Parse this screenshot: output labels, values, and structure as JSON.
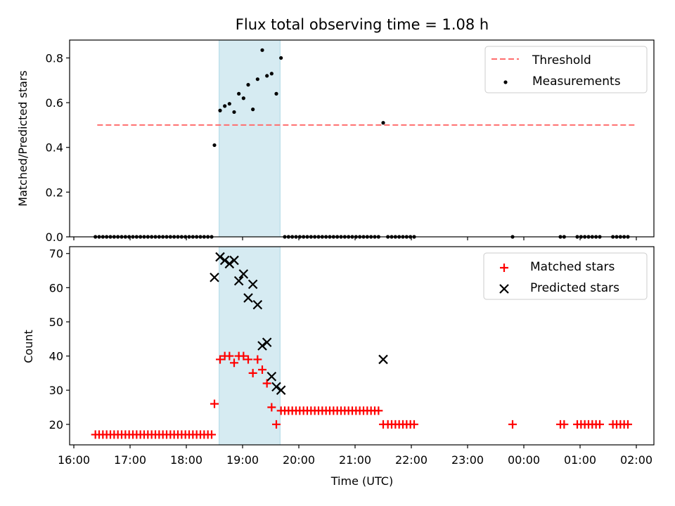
{
  "title": "Flux total observing time = 1.08 h",
  "colors": {
    "threshold": "#ff6e6e",
    "measurement": "#000000",
    "matched": "#ff0000",
    "predicted": "#000000",
    "span": "#add8e6"
  },
  "chart_data": [
    {
      "type": "scatter",
      "ylabel": "Matched/Predicted stars",
      "xlim": [
        "16:00",
        "02:10"
      ],
      "ylim": [
        0,
        0.88
      ],
      "yticks": [
        0.0,
        0.2,
        0.4,
        0.6,
        0.8
      ],
      "xticks": [
        "16:00",
        "17:00",
        "18:00",
        "19:00",
        "20:00",
        "21:00",
        "22:00",
        "23:00",
        "00:00",
        "01:00",
        "02:00"
      ],
      "highlight_span": [
        "18:35",
        "19:40"
      ],
      "legend": {
        "position": "top-right",
        "entries": [
          "Threshold",
          "Measurements"
        ]
      },
      "threshold": {
        "name": "Threshold",
        "y": 0.5,
        "x": [
          "16:25",
          "02:00"
        ]
      },
      "series": [
        {
          "name": "Measurements",
          "points": [
            [
              "16:23",
              0
            ],
            [
              "16:27",
              0
            ],
            [
              "16:31",
              0
            ],
            [
              "16:35",
              0
            ],
            [
              "16:39",
              0
            ],
            [
              "16:43",
              0
            ],
            [
              "16:47",
              0
            ],
            [
              "16:51",
              0
            ],
            [
              "16:55",
              0
            ],
            [
              "16:59",
              0
            ],
            [
              "17:03",
              0
            ],
            [
              "17:07",
              0
            ],
            [
              "17:11",
              0
            ],
            [
              "17:15",
              0
            ],
            [
              "17:19",
              0
            ],
            [
              "17:23",
              0
            ],
            [
              "17:27",
              0
            ],
            [
              "17:31",
              0
            ],
            [
              "17:35",
              0
            ],
            [
              "17:39",
              0
            ],
            [
              "17:43",
              0
            ],
            [
              "17:47",
              0
            ],
            [
              "17:51",
              0
            ],
            [
              "17:55",
              0
            ],
            [
              "17:59",
              0
            ],
            [
              "18:03",
              0
            ],
            [
              "18:07",
              0
            ],
            [
              "18:11",
              0
            ],
            [
              "18:15",
              0
            ],
            [
              "18:19",
              0
            ],
            [
              "18:23",
              0
            ],
            [
              "18:27",
              0
            ],
            [
              "18:30",
              0.41
            ],
            [
              "18:36",
              0.565
            ],
            [
              "18:41",
              0.585
            ],
            [
              "18:46",
              0.595
            ],
            [
              "18:51",
              0.558
            ],
            [
              "18:56",
              0.64
            ],
            [
              "19:01",
              0.62
            ],
            [
              "19:06",
              0.68
            ],
            [
              "19:11",
              0.57
            ],
            [
              "19:16",
              0.705
            ],
            [
              "19:21",
              0.835
            ],
            [
              "19:26",
              0.72
            ],
            [
              "19:31",
              0.73
            ],
            [
              "19:36",
              0.64
            ],
            [
              "19:41",
              0.8
            ],
            [
              "19:45",
              0
            ],
            [
              "19:49",
              0
            ],
            [
              "19:53",
              0
            ],
            [
              "19:57",
              0
            ],
            [
              "20:01",
              0
            ],
            [
              "20:05",
              0
            ],
            [
              "20:09",
              0
            ],
            [
              "20:13",
              0
            ],
            [
              "20:17",
              0
            ],
            [
              "20:21",
              0
            ],
            [
              "20:25",
              0
            ],
            [
              "20:29",
              0
            ],
            [
              "20:33",
              0
            ],
            [
              "20:37",
              0
            ],
            [
              "20:41",
              0
            ],
            [
              "20:45",
              0
            ],
            [
              "20:49",
              0
            ],
            [
              "20:53",
              0
            ],
            [
              "20:57",
              0
            ],
            [
              "21:01",
              0
            ],
            [
              "21:05",
              0
            ],
            [
              "21:09",
              0
            ],
            [
              "21:13",
              0
            ],
            [
              "21:17",
              0
            ],
            [
              "21:21",
              0
            ],
            [
              "21:25",
              0
            ],
            [
              "21:30",
              0.51
            ],
            [
              "21:35",
              0
            ],
            [
              "21:39",
              0
            ],
            [
              "21:43",
              0
            ],
            [
              "21:47",
              0
            ],
            [
              "21:51",
              0
            ],
            [
              "21:55",
              0
            ],
            [
              "21:59",
              0
            ],
            [
              "22:03",
              0
            ],
            [
              "23:48",
              0
            ],
            [
              "00:39",
              0
            ],
            [
              "00:43",
              0
            ],
            [
              "00:57",
              0
            ],
            [
              "01:01",
              0
            ],
            [
              "01:05",
              0
            ],
            [
              "01:09",
              0
            ],
            [
              "01:13",
              0
            ],
            [
              "01:17",
              0
            ],
            [
              "01:21",
              0
            ],
            [
              "01:35",
              0
            ],
            [
              "01:39",
              0
            ],
            [
              "01:43",
              0
            ],
            [
              "01:47",
              0
            ],
            [
              "01:51",
              0
            ]
          ]
        }
      ]
    },
    {
      "type": "scatter",
      "xlabel": "Time (UTC)",
      "ylabel": "Count",
      "xlim": [
        "16:00",
        "02:10"
      ],
      "ylim": [
        14,
        72
      ],
      "yticks": [
        20,
        30,
        40,
        50,
        60,
        70
      ],
      "xticks": [
        "16:00",
        "17:00",
        "18:00",
        "19:00",
        "20:00",
        "21:00",
        "22:00",
        "23:00",
        "00:00",
        "01:00",
        "02:00"
      ],
      "highlight_span": [
        "18:35",
        "19:40"
      ],
      "legend": {
        "position": "top-right",
        "entries": [
          "Matched stars",
          "Predicted stars"
        ]
      },
      "series": [
        {
          "name": "Matched stars",
          "marker": "plus",
          "points": [
            [
              "16:23",
              17
            ],
            [
              "16:27",
              17
            ],
            [
              "16:31",
              17
            ],
            [
              "16:35",
              17
            ],
            [
              "16:39",
              17
            ],
            [
              "16:43",
              17
            ],
            [
              "16:47",
              17
            ],
            [
              "16:51",
              17
            ],
            [
              "16:55",
              17
            ],
            [
              "16:59",
              17
            ],
            [
              "17:03",
              17
            ],
            [
              "17:07",
              17
            ],
            [
              "17:11",
              17
            ],
            [
              "17:15",
              17
            ],
            [
              "17:19",
              17
            ],
            [
              "17:23",
              17
            ],
            [
              "17:27",
              17
            ],
            [
              "17:31",
              17
            ],
            [
              "17:35",
              17
            ],
            [
              "17:39",
              17
            ],
            [
              "17:43",
              17
            ],
            [
              "17:47",
              17
            ],
            [
              "17:51",
              17
            ],
            [
              "17:55",
              17
            ],
            [
              "17:59",
              17
            ],
            [
              "18:03",
              17
            ],
            [
              "18:07",
              17
            ],
            [
              "18:11",
              17
            ],
            [
              "18:15",
              17
            ],
            [
              "18:19",
              17
            ],
            [
              "18:23",
              17
            ],
            [
              "18:27",
              17
            ],
            [
              "18:30",
              26
            ],
            [
              "18:36",
              39
            ],
            [
              "18:41",
              40
            ],
            [
              "18:46",
              40
            ],
            [
              "18:51",
              38
            ],
            [
              "18:56",
              40
            ],
            [
              "19:01",
              40
            ],
            [
              "19:06",
              39
            ],
            [
              "19:11",
              35
            ],
            [
              "19:16",
              39
            ],
            [
              "19:21",
              36
            ],
            [
              "19:26",
              32
            ],
            [
              "19:31",
              25
            ],
            [
              "19:36",
              20
            ],
            [
              "19:41",
              24
            ],
            [
              "19:45",
              24
            ],
            [
              "19:49",
              24
            ],
            [
              "19:53",
              24
            ],
            [
              "19:57",
              24
            ],
            [
              "20:01",
              24
            ],
            [
              "20:05",
              24
            ],
            [
              "20:09",
              24
            ],
            [
              "20:13",
              24
            ],
            [
              "20:17",
              24
            ],
            [
              "20:21",
              24
            ],
            [
              "20:25",
              24
            ],
            [
              "20:29",
              24
            ],
            [
              "20:33",
              24
            ],
            [
              "20:37",
              24
            ],
            [
              "20:41",
              24
            ],
            [
              "20:45",
              24
            ],
            [
              "20:49",
              24
            ],
            [
              "20:53",
              24
            ],
            [
              "20:57",
              24
            ],
            [
              "21:01",
              24
            ],
            [
              "21:05",
              24
            ],
            [
              "21:09",
              24
            ],
            [
              "21:13",
              24
            ],
            [
              "21:17",
              24
            ],
            [
              "21:21",
              24
            ],
            [
              "21:25",
              24
            ],
            [
              "21:30",
              20
            ],
            [
              "21:35",
              20
            ],
            [
              "21:39",
              20
            ],
            [
              "21:43",
              20
            ],
            [
              "21:47",
              20
            ],
            [
              "21:51",
              20
            ],
            [
              "21:55",
              20
            ],
            [
              "21:59",
              20
            ],
            [
              "22:03",
              20
            ],
            [
              "23:48",
              20
            ],
            [
              "00:39",
              20
            ],
            [
              "00:43",
              20
            ],
            [
              "00:57",
              20
            ],
            [
              "01:01",
              20
            ],
            [
              "01:05",
              20
            ],
            [
              "01:09",
              20
            ],
            [
              "01:13",
              20
            ],
            [
              "01:17",
              20
            ],
            [
              "01:21",
              20
            ],
            [
              "01:35",
              20
            ],
            [
              "01:39",
              20
            ],
            [
              "01:43",
              20
            ],
            [
              "01:47",
              20
            ],
            [
              "01:51",
              20
            ]
          ]
        },
        {
          "name": "Predicted stars",
          "marker": "x",
          "points": [
            [
              "18:30",
              63
            ],
            [
              "18:36",
              69
            ],
            [
              "18:41",
              68
            ],
            [
              "18:46",
              67
            ],
            [
              "18:51",
              68
            ],
            [
              "18:56",
              62
            ],
            [
              "19:01",
              64
            ],
            [
              "19:06",
              57
            ],
            [
              "19:11",
              61
            ],
            [
              "19:16",
              55
            ],
            [
              "19:21",
              43
            ],
            [
              "19:26",
              44
            ],
            [
              "19:31",
              34
            ],
            [
              "19:36",
              31
            ],
            [
              "19:41",
              30
            ],
            [
              "21:30",
              39
            ]
          ]
        }
      ]
    }
  ]
}
